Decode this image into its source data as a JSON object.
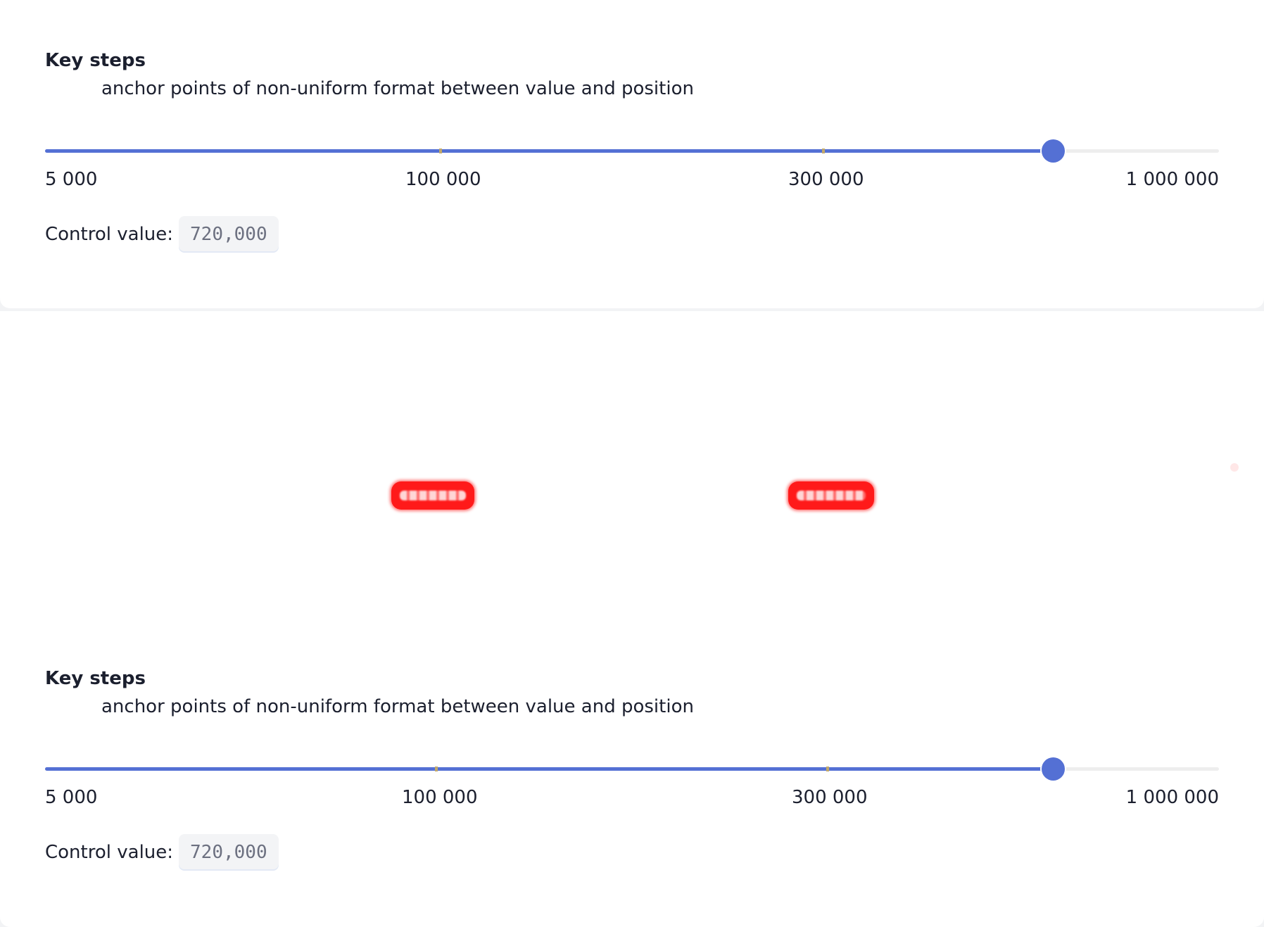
{
  "blocks": [
    {
      "title": "Key steps",
      "description": "anchor points of non-uniform format between value and position",
      "slider": {
        "min": 5000,
        "max": 1000000,
        "value": 720000,
        "fill_fraction": 0.86,
        "marks": [
          {
            "value": 5000,
            "label": "5 000"
          },
          {
            "value": 100000,
            "label": "100 000"
          },
          {
            "value": 300000,
            "label": "300 000"
          },
          {
            "value": 1000000,
            "label": "1 000 000"
          }
        ]
      },
      "control_value_label": "Control value:",
      "control_value": "720,000"
    },
    {
      "title": "Key steps",
      "description": "anchor points of non-uniform format between value and position",
      "slider": {
        "min": 5000,
        "max": 1000000,
        "value": 720000,
        "fill_fraction": 0.86,
        "marks": [
          {
            "value": 5000,
            "label": "5 000"
          },
          {
            "value": 100000,
            "label": "100 000"
          },
          {
            "value": 300000,
            "label": "300 000"
          },
          {
            "value": 1000000,
            "label": "1 000 000"
          }
        ]
      },
      "control_value_label": "Control value:",
      "control_value": "720,000"
    }
  ],
  "colors": {
    "accent": "#5470d4",
    "track": "#eeeeee",
    "text": "#1b1f2e",
    "badge_bg": "#f3f4f6",
    "badge_text": "#6c7080",
    "redaction": "#ff1a1a"
  }
}
